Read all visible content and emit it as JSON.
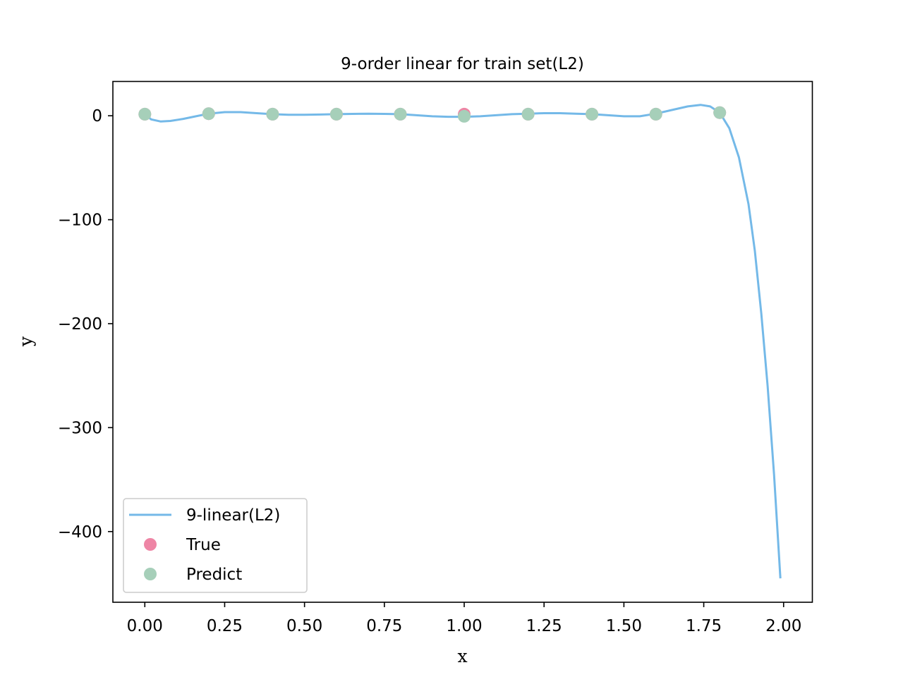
{
  "chart_data": {
    "type": "line",
    "title": "9-order linear for train set(L2)",
    "xlabel": "x",
    "ylabel": "y",
    "xlim": [
      -0.1,
      2.09
    ],
    "ylim": [
      -468,
      33
    ],
    "x_ticks": [
      0.0,
      0.25,
      0.5,
      0.75,
      1.0,
      1.25,
      1.5,
      1.75,
      2.0
    ],
    "x_tick_labels": [
      "0.00",
      "0.25",
      "0.50",
      "0.75",
      "1.00",
      "1.25",
      "1.50",
      "1.75",
      "2.00"
    ],
    "y_ticks": [
      0,
      -100,
      -200,
      -300,
      -400
    ],
    "y_tick_labels": [
      "0",
      "−100",
      "−200",
      "−300",
      "−400"
    ],
    "grid": false,
    "legend_position": "lower-left",
    "series": [
      {
        "name": "9-linear(L2)",
        "kind": "line",
        "color": "#74b9e8",
        "x": [
          0.0,
          0.02,
          0.05,
          0.08,
          0.12,
          0.16,
          0.2,
          0.25,
          0.3,
          0.35,
          0.4,
          0.45,
          0.5,
          0.55,
          0.6,
          0.65,
          0.7,
          0.75,
          0.8,
          0.85,
          0.9,
          0.95,
          1.0,
          1.05,
          1.1,
          1.15,
          1.2,
          1.25,
          1.3,
          1.35,
          1.4,
          1.45,
          1.5,
          1.55,
          1.6,
          1.65,
          1.7,
          1.74,
          1.77,
          1.8,
          1.83,
          1.86,
          1.89,
          1.91,
          1.93,
          1.95,
          1.97,
          1.99
        ],
        "y": [
          1.5,
          -3.5,
          -5.5,
          -5.0,
          -3.0,
          -0.5,
          2.0,
          3.5,
          3.5,
          2.5,
          1.5,
          1.0,
          1.0,
          1.2,
          1.5,
          1.8,
          2.0,
          1.8,
          1.5,
          0.5,
          -0.5,
          -1.0,
          -1.0,
          -0.5,
          0.5,
          1.5,
          2.0,
          2.5,
          2.5,
          2.0,
          1.5,
          0.5,
          -0.5,
          -0.5,
          2.0,
          5.5,
          9.0,
          10.5,
          9.0,
          3.0,
          -12,
          -40,
          -85,
          -130,
          -190,
          -260,
          -345,
          -445
        ]
      },
      {
        "name": "True",
        "kind": "scatter",
        "color": "#ee85a5",
        "x": [
          0.0,
          0.2,
          0.4,
          0.6,
          0.8,
          1.0,
          1.2,
          1.4,
          1.6,
          1.8
        ],
        "y": [
          1.5,
          2.0,
          1.5,
          1.5,
          1.5,
          1.5,
          1.5,
          1.5,
          1.5,
          3.0
        ]
      },
      {
        "name": "Predict",
        "kind": "scatter",
        "color": "#a6cfb9",
        "x": [
          0.0,
          0.2,
          0.4,
          0.6,
          0.8,
          1.0,
          1.2,
          1.4,
          1.6,
          1.8
        ],
        "y": [
          1.5,
          2.0,
          1.5,
          1.5,
          1.5,
          -0.5,
          1.5,
          1.5,
          1.5,
          3.0
        ]
      }
    ]
  }
}
